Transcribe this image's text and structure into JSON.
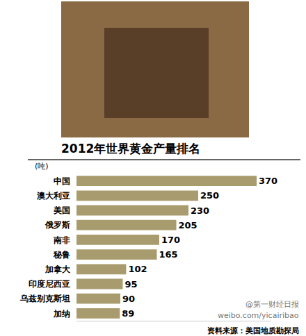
{
  "chart_data": {
    "type": "bar",
    "orientation": "horizontal",
    "title": "2012年世界黄金产量排名",
    "unit": "(吨)",
    "source": "资料来源：美国地质勘探局",
    "watermark": [
      "@第一财经日报",
      "weibo.com/yicairibao"
    ],
    "categories": [
      "中国",
      "澳大利亚",
      "美国",
      "俄罗斯",
      "南非",
      "秘鲁",
      "加拿大",
      "印度尼西亚",
      "乌兹别克斯坦",
      "加纳"
    ],
    "values": [
      370,
      250,
      230,
      205,
      170,
      165,
      102,
      95,
      90,
      89
    ],
    "color": "#a89c6e",
    "xlim": [
      0,
      400
    ],
    "data_labels": true,
    "grid": false,
    "tick_labels": "y"
  }
}
